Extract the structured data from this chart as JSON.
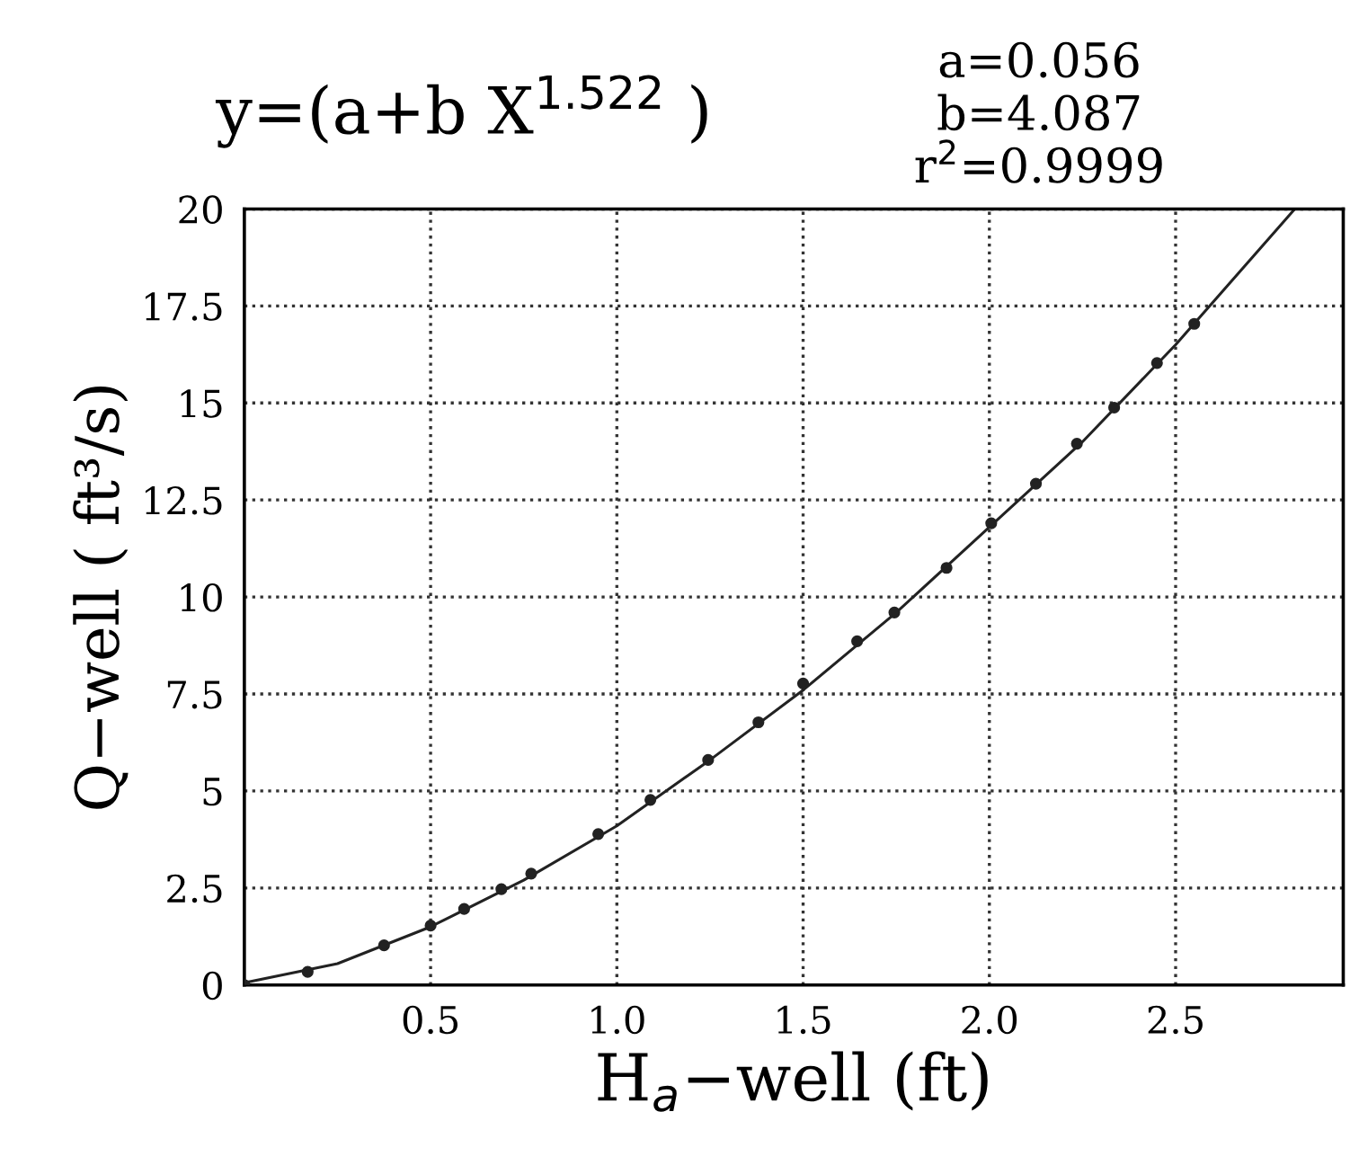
{
  "chart_data": {
    "type": "scatter",
    "title": "y=(a+b X$^{1.522}$ )",
    "annotations": [
      "a=0.056",
      "b=4.087",
      "r$^{2}$=0.9999"
    ],
    "xlabel": "H$_{a}$−well (ft)",
    "ylabel": "Q−well ( ft³/s)",
    "series": [
      {
        "color": "#222222",
        "marker": "circle",
        "x": [
          0,
          0.17,
          0.375,
          0.5,
          0.59,
          0.69,
          0.77,
          0.95,
          1.09,
          1.245,
          1.38,
          1.5,
          1.645,
          1.745,
          1.885,
          2.005,
          2.125,
          2.235,
          2.335,
          2.45,
          2.55
        ],
        "values": [
          0,
          0.34,
          1.02,
          1.53,
          1.96,
          2.47,
          2.87,
          3.89,
          4.77,
          5.8,
          6.77,
          7.77,
          8.86,
          9.6,
          10.75,
          11.9,
          12.92,
          13.95,
          14.88,
          16.03,
          17.04
        ]
      },
      {
        "type": "line",
        "color": "#222222",
        "marker": "none",
        "line_style": "solid",
        "x": [
          0,
          0.25,
          0.5,
          0.75,
          1.0,
          1.25,
          1.5,
          1.75,
          2.0,
          2.25,
          2.5,
          2.82
        ],
        "values": [
          0.06,
          0.55,
          1.5,
          2.7,
          4.1,
          5.8,
          7.6,
          9.6,
          11.8,
          14.0,
          16.5,
          20
        ]
      }
    ],
    "xlim": [
      0,
      2.95
    ],
    "xticks": [
      0.5,
      {
        "value": 1,
        "label": "1.0"
      },
      1.5,
      {
        "value": 2,
        "label": "2.0"
      },
      2.5
    ],
    "ylim": [
      0,
      20
    ],
    "yticks": [
      0,
      2.5,
      5,
      7.5,
      10,
      12.5,
      15,
      17.5,
      20
    ],
    "grid": true
  }
}
